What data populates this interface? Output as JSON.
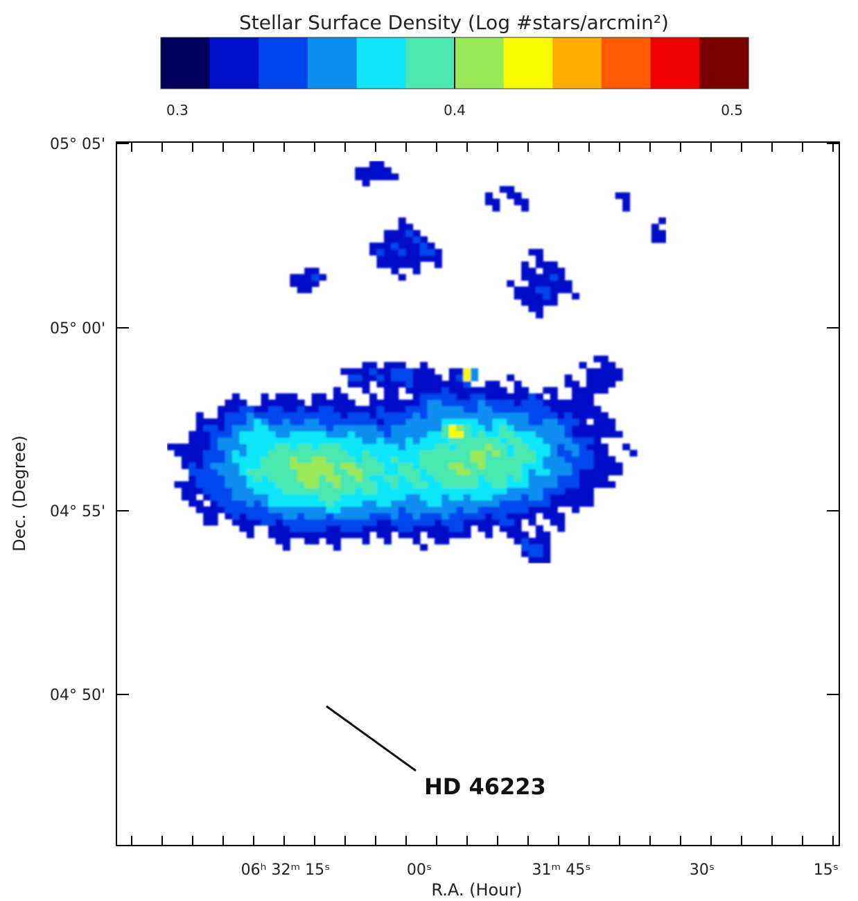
{
  "chart_data": {
    "type": "heatmap",
    "title": "Stellar Surface Density (Log #stars/arcmin²)",
    "xlabel": "R.A. (Hour)",
    "ylabel": "Dec. (Degree)",
    "colorbar": {
      "orientation": "horizontal",
      "position": "top",
      "tick_labels": [
        "0.3",
        "0.4",
        "0.5"
      ],
      "range": [
        0.3,
        0.5
      ],
      "colors": [
        "#00005a",
        "#0010c8",
        "#0046ee",
        "#0a8ef0",
        "#10e6f8",
        "#4ae8b0",
        "#98e858",
        "#fafa00",
        "#ffaa00",
        "#ff5a00",
        "#ee0000",
        "#7a0000"
      ]
    },
    "x_tick_labels": [
      "06ʰ 32ᵐ 15ˢ",
      "00ˢ",
      "31ᵐ 45ˢ",
      "30ˢ",
      "15ˢ"
    ],
    "y_tick_labels": [
      "05° 05'",
      "05° 00'",
      "04° 55'",
      "04° 50'"
    ],
    "annotation": {
      "text": "HD 46223"
    },
    "map": {
      "missing_value_color": "#ffffff",
      "blobs": [
        {
          "ra": 25,
          "dec": 60,
          "sx": 300,
          "sy": 200,
          "v": 0.095
        },
        {
          "ra": 52,
          "dec": 62,
          "sx": 300,
          "sy": 200,
          "v": 0.095
        },
        {
          "ra": 33,
          "dec": 57,
          "sx": 170,
          "sy": 150,
          "v": 0.02
        },
        {
          "ra": 44,
          "dec": 55,
          "sx": 170,
          "sy": 160,
          "v": 0.02
        },
        {
          "ra": 18,
          "dec": 67,
          "sx": 90,
          "sy": 80,
          "v": 0.02
        },
        {
          "ra": 38,
          "dec": 75,
          "sx": 160,
          "sy": 40,
          "v": 0.035
        },
        {
          "ra": 58,
          "dec": 47,
          "sx": 70,
          "sy": 65,
          "v": 0.03
        },
        {
          "ra": 40,
          "dec": 95,
          "sx": 140,
          "sy": 100,
          "v": 0.035
        },
        {
          "ra": 36,
          "dec": 107,
          "sx": 100,
          "sy": 50,
          "v": 0.03
        },
        {
          "ra": 27,
          "dec": 90,
          "sx": 100,
          "sy": 70,
          "v": 0.03
        },
        {
          "ra": 44,
          "dec": 70,
          "sx": 80,
          "sy": 60,
          "v": 0.02
        },
        {
          "ra": 59,
          "dec": 89,
          "sx": 110,
          "sy": 140,
          "v": 0.032
        },
        {
          "ra": 54,
          "dec": 103,
          "sx": 100,
          "sy": 60,
          "v": 0.025
        },
        {
          "ra": 67,
          "dec": 75,
          "sx": 90,
          "sy": 110,
          "v": 0.024
        },
        {
          "ra": 70,
          "dec": 102,
          "sx": 30,
          "sy": 100,
          "v": 0.024
        },
        {
          "ra": 75,
          "dec": 98,
          "sx": 30,
          "sy": 110,
          "v": 0.022
        },
        {
          "ra": 75,
          "dec": 109,
          "sx": 28,
          "sy": 40,
          "v": 0.02
        },
        {
          "ra": 68,
          "dec": 38,
          "sx": 14,
          "sy": 14,
          "v": 0.01
        },
        {
          "ra": 86,
          "dec": 47,
          "sx": 14,
          "sy": 14,
          "v": 0.01
        },
        {
          "ra": 86,
          "dec": 50,
          "sx": 22,
          "sy": 10,
          "v": 0.01
        },
        {
          "ra": 85,
          "dec": 52,
          "sx": 10,
          "sy": 8,
          "v": 0.01
        },
        {
          "ra": 34,
          "dec": 21,
          "sx": 10,
          "sy": 10,
          "v": 0.01
        },
        {
          "ra": 33,
          "dec": 31,
          "sx": 8,
          "sy": 10,
          "v": 0.008
        },
        {
          "ra": 51,
          "dec": 3,
          "sx": 7,
          "sy": 7,
          "v": 0.008
        },
        {
          "ra": 53,
          "dec": 11,
          "sx": 16,
          "sy": 10,
          "v": 0.02
        },
        {
          "ra": 56,
          "dec": 16,
          "sx": 20,
          "sy": 10,
          "v": 0.02
        },
        {
          "ra": 53.5,
          "dec": 35,
          "sx": 6,
          "sy": 10,
          "v": 0.02
        },
        {
          "ra": 60,
          "dec": 33,
          "sx": 6,
          "sy": 6,
          "v": 0.01
        },
        {
          "ra": 13,
          "dec": 10,
          "sx": 8,
          "sy": 6,
          "v": 0.01
        }
      ],
      "holes": [
        {
          "ra": 24,
          "dec": 88,
          "sx": 12,
          "sy": 16,
          "v": 0.07
        },
        {
          "ra": 23,
          "dec": 83,
          "sx": 8,
          "sy": 12,
          "v": 0.07
        },
        {
          "ra": 30,
          "dec": 89,
          "sx": 28,
          "sy": 30,
          "v": 0.08
        },
        {
          "ra": 30,
          "dec": 85,
          "sx": 18,
          "sy": 10,
          "v": 0.07
        },
        {
          "ra": 28,
          "dec": 72,
          "sx": 8,
          "sy": 6,
          "v": 0.06
        },
        {
          "ra": 20,
          "dec": 48,
          "sx": 20,
          "sy": 60,
          "v": 0.05
        },
        {
          "ra": 14,
          "dec": 36,
          "sx": 60,
          "sy": 50,
          "v": 0.05
        },
        {
          "ra": 70,
          "dec": 66,
          "sx": 5,
          "sy": 5,
          "v": 0.05
        },
        {
          "ra": 77,
          "dec": 78,
          "sx": 12,
          "sy": 14,
          "v": 0.08
        },
        {
          "ra": 70,
          "dec": 89,
          "sx": 14,
          "sy": 8,
          "v": 0.08
        },
        {
          "ra": 75,
          "dec": 99,
          "sx": 6,
          "sy": 6,
          "v": 0.05
        },
        {
          "ra": 85,
          "dec": 58,
          "sx": 40,
          "sy": 25,
          "v": 0.05
        },
        {
          "ra": 78,
          "dec": 39,
          "sx": 8,
          "sy": 14,
          "v": 0.07
        },
        {
          "ra": 75,
          "dec": 28,
          "sx": 8,
          "sy": 8,
          "v": 0.06
        },
        {
          "ra": 74,
          "dec": 34,
          "sx": 4,
          "sy": 4,
          "v": 0.04
        },
        {
          "ra": 37,
          "dec": 24,
          "sx": 6,
          "sy": 8,
          "v": 0.04
        },
        {
          "ra": 47,
          "dec": 24,
          "sx": 18,
          "sy": 20,
          "v": 0.05
        },
        {
          "ra": 40,
          "dec": 10,
          "sx": 30,
          "sy": 15,
          "v": 0.05
        },
        {
          "ra": 46,
          "dec": 7,
          "sx": 20,
          "sy": 10,
          "v": 0.05
        },
        {
          "ra": 64,
          "dec": 18,
          "sx": 20,
          "sy": 20,
          "v": 0.05
        },
        {
          "ra": 68,
          "dec": 24,
          "sx": 8,
          "sy": 8,
          "v": 0.04
        },
        {
          "ra": 17,
          "dec": 27,
          "sx": 10,
          "sy": 16,
          "v": 0.04
        },
        {
          "ra": 14,
          "dec": 16,
          "sx": 6,
          "sy": 6,
          "v": 0.06
        },
        {
          "ra": 10,
          "dec": 10,
          "sx": 60,
          "sy": 30,
          "v": 0.06
        },
        {
          "ra": 88,
          "dec": 20,
          "sx": 30,
          "sy": 8,
          "v": 0.05
        },
        {
          "ra": 95,
          "dec": 18,
          "sx": 40,
          "sy": 16,
          "v": 0.05
        },
        {
          "ra": 8,
          "dec": 60,
          "sx": 12,
          "sy": 36,
          "v": 0.04
        },
        {
          "ra": 6,
          "dec": 80,
          "sx": 20,
          "sy": 30,
          "v": 0.05
        },
        {
          "ra": 14,
          "dec": 102,
          "sx": 10,
          "sy": 8,
          "v": 0.05
        },
        {
          "ra": 48,
          "dec": 41,
          "sx": 5,
          "sy": 5,
          "v": 0.06
        },
        {
          "ra": 57,
          "dec": 40,
          "sx": 4,
          "sy": 4,
          "v": 0.05
        }
      ],
      "cluster_peaks": [
        {
          "ra": 48.8,
          "dec": 75,
          "sx": 16,
          "sy": 20,
          "v": 0.18
        },
        {
          "ra": 48.8,
          "dec": 75.3,
          "sx": 5,
          "sy": 6,
          "v": 0.09
        },
        {
          "ra": 47,
          "dec": 66,
          "sx": 30,
          "sy": 22,
          "v": 0.06
        },
        {
          "ra": 46,
          "dec": 54,
          "sx": 8,
          "sy": 12,
          "v": 0.06
        },
        {
          "ra": 37,
          "dec": 76,
          "sx": 14,
          "sy": 8,
          "v": 0.02
        },
        {
          "ra": 36,
          "dec": 67,
          "sx": 10,
          "sy": 8,
          "v": 0.02
        },
        {
          "ra": 31,
          "dec": 70,
          "sx": 10,
          "sy": 10,
          "v": 0.02
        },
        {
          "ra": 41,
          "dec": 63,
          "sx": 12,
          "sy": 8,
          "v": 0.02
        }
      ],
      "grid_step": 1
    }
  }
}
